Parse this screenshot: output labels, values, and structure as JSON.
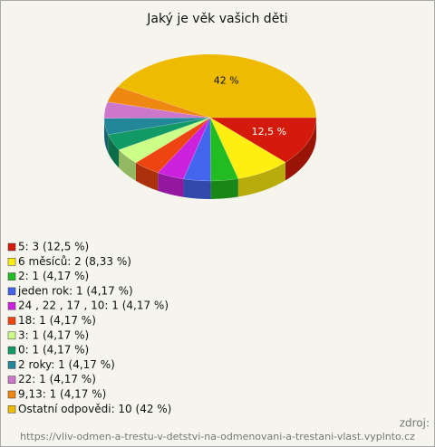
{
  "chart_data": {
    "type": "pie",
    "title": "Jaký je věk vašich děti",
    "categories": [
      "5: 3 (12,5 %)",
      "6 měsíců: 2 (8,33 %)",
      "2: 1 (4,17 %)",
      "jeden rok: 1 (4,17 %)",
      "24 , 22 , 17 , 10: 1 (4,17 %)",
      "18: 1 (4,17 %)",
      "3: 1 (4,17 %)",
      "0: 1 (4,17 %)",
      "2 roky: 1 (4,17 %)",
      "22: 1 (4,17 %)",
      "9,13: 1 (4,17 %)",
      "Ostatní odpovědi: 10 (42 %)"
    ],
    "values": [
      12.5,
      8.33,
      4.17,
      4.17,
      4.17,
      4.17,
      4.17,
      4.17,
      4.17,
      4.17,
      4.17,
      42
    ],
    "value_labels": [
      "12,5 %",
      null,
      null,
      null,
      null,
      null,
      null,
      null,
      null,
      null,
      null,
      "42 %"
    ],
    "colors": [
      "#d41a0a",
      "#ffee11",
      "#22bb22",
      "#4466ee",
      "#cc22dd",
      "#ee4411",
      "#ccff88",
      "#119966",
      "#228899",
      "#cc77cc",
      "#ee8811",
      "#eebb00"
    ],
    "source_label": "zdroj:",
    "footer": "https://vliv-odmen-a-trestu-v-detstvi-na-odmenovani-a-trestani-vlast.vyplnto.cz"
  }
}
